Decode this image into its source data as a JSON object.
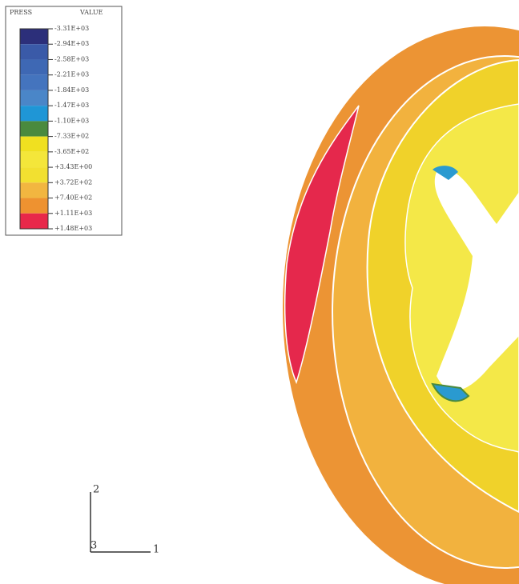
{
  "legend": {
    "title": "PRESS",
    "value_header": "VALUE",
    "labels": [
      "-3.31E+03",
      "-2.94E+03",
      "-2.58E+03",
      "-2.21E+03",
      "-1.84E+03",
      "-1.47E+03",
      "-1.10E+03",
      "-7.33E+02",
      "-3.65E+02",
      "+3.43E+00",
      "+3.72E+02",
      "+7.40E+02",
      "+1.11E+03",
      "+1.48E+03"
    ],
    "colors": [
      "#2c2f7a",
      "#3a5aa8",
      "#3e68b4",
      "#4474be",
      "#4a86c8",
      "#1f96d6",
      "#4a8a3e",
      "#f0e020",
      "#f4e63a",
      "#f2e030",
      "#f2b640",
      "#ee9230",
      "#e8284a"
    ]
  },
  "triad": {
    "axis_1": "1",
    "axis_2": "2",
    "axis_3": "3"
  }
}
